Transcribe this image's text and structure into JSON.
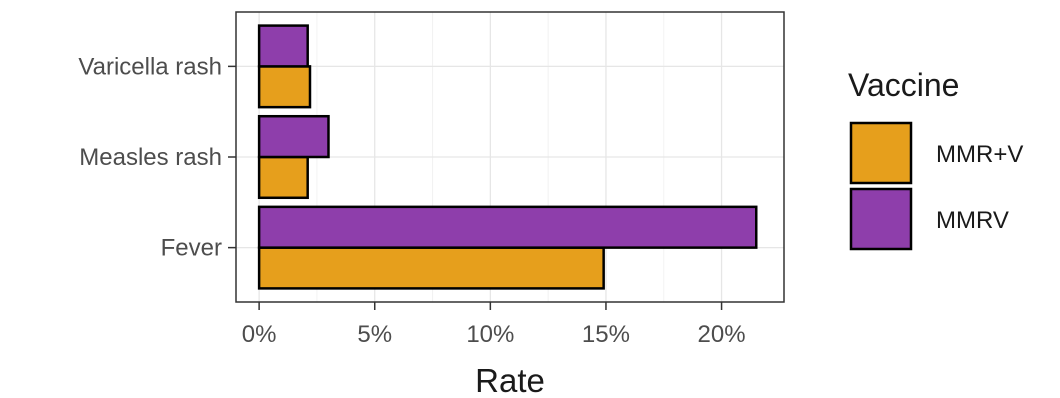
{
  "chart_data": {
    "type": "bar",
    "orientation": "horizontal",
    "categories": [
      "Fever",
      "Measles rash",
      "Varicella rash"
    ],
    "series": [
      {
        "name": "MMR+V",
        "color": "#E69F1C",
        "values": [
          14.9,
          2.1,
          2.2
        ]
      },
      {
        "name": "MMRV",
        "color": "#8E3EAB",
        "values": [
          21.5,
          3.0,
          2.1
        ]
      }
    ],
    "xlabel": "Rate",
    "ylabel": "",
    "xlim": [
      -1.0,
      22.7
    ],
    "x_ticks": [
      0,
      5,
      10,
      15,
      20
    ],
    "x_tick_labels": [
      "0%",
      "5%",
      "10%",
      "15%",
      "20%"
    ],
    "grid": true,
    "legend": {
      "title": "Vaccine",
      "position": "right"
    }
  }
}
